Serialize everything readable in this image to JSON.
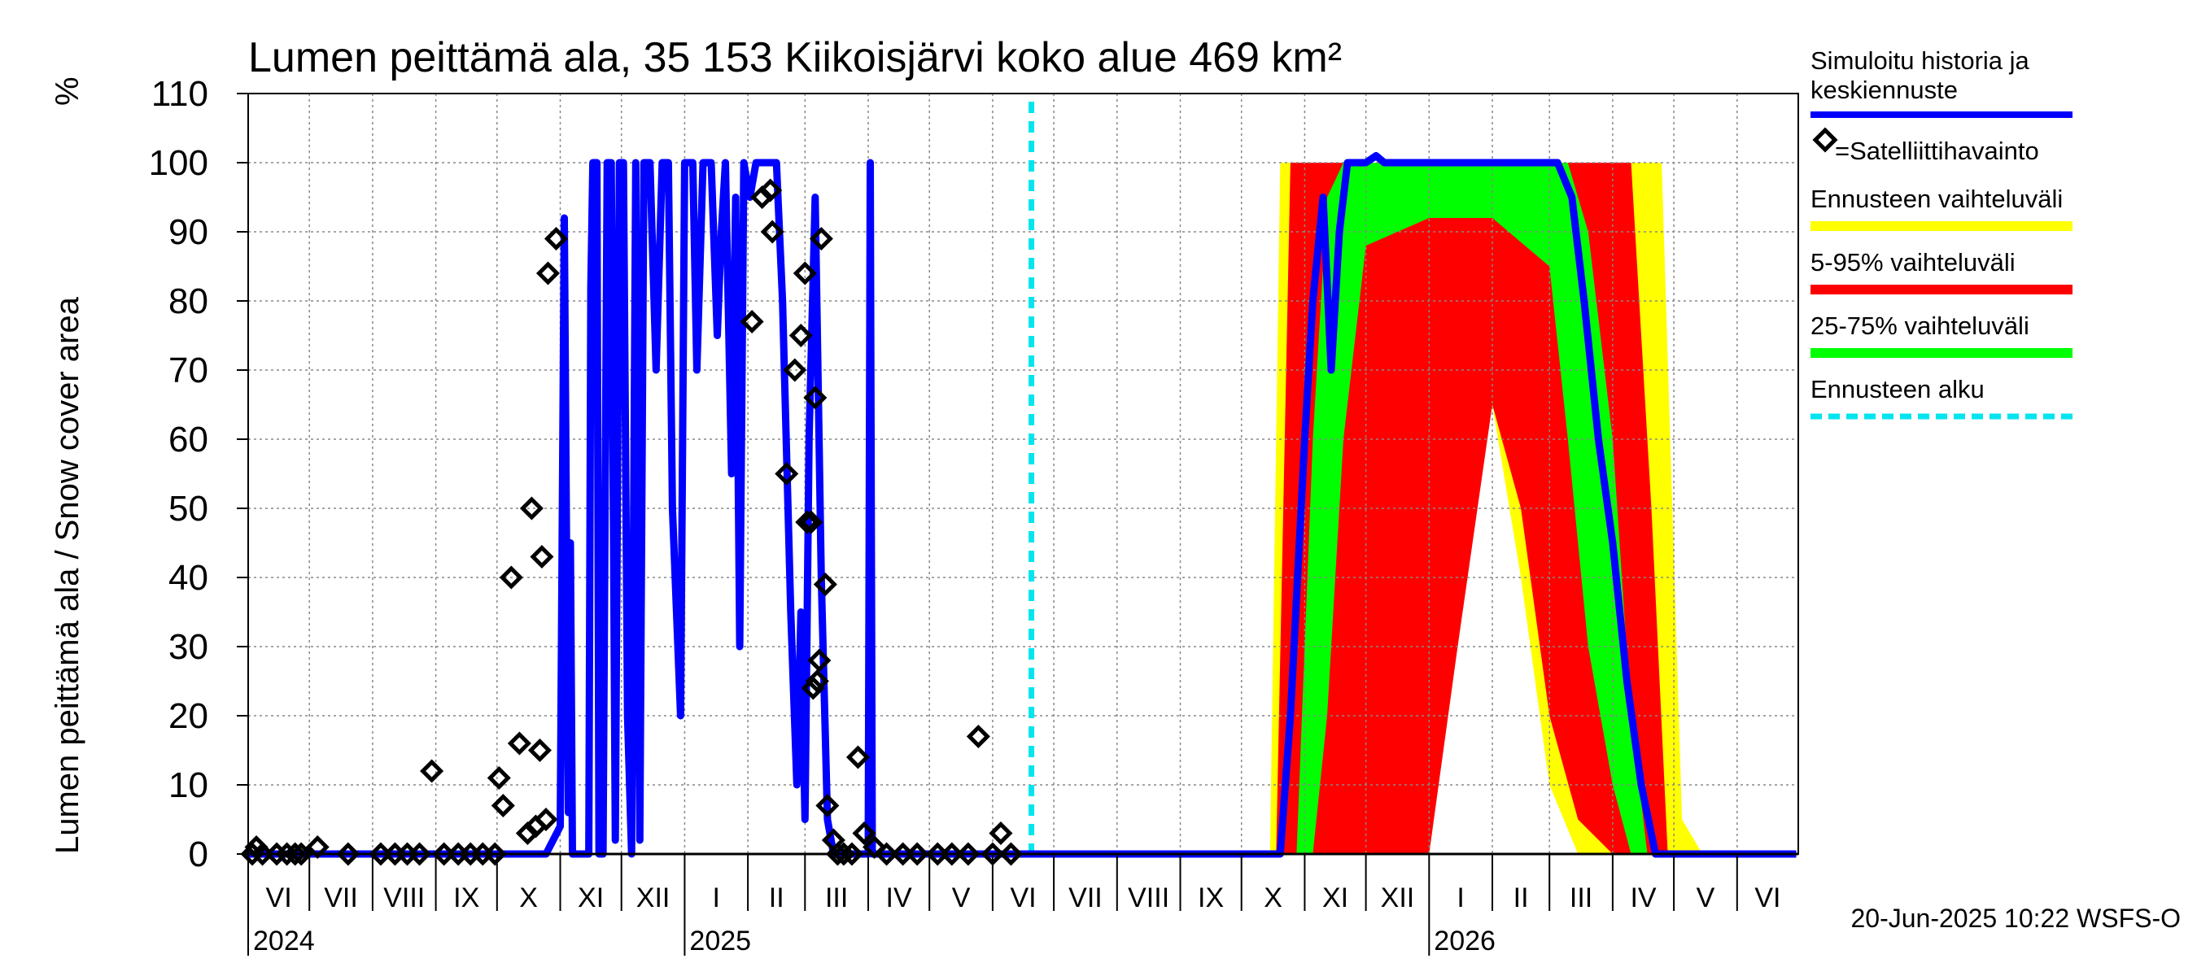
{
  "chart_data": {
    "type": "line",
    "title": "Lumen peittämä ala, 35 153 Kiikoisjärvi koko alue 469 km²",
    "ylabel": "Lumen peittämä ala / Snow cover area",
    "yunit": "%",
    "ylim": [
      0,
      110
    ],
    "yticks": [
      0,
      10,
      20,
      30,
      40,
      50,
      60,
      70,
      80,
      90,
      100,
      110
    ],
    "xlim": [
      "2024-06-01",
      "2026-06-30"
    ],
    "grid": true,
    "legend_position": "right",
    "month_labels": [
      "VI",
      "VII",
      "VIII",
      "IX",
      "X",
      "XI",
      "XII",
      "I",
      "II",
      "III",
      "IV",
      "V",
      "VI",
      "VII",
      "VIII",
      "IX",
      "X",
      "XI",
      "XII",
      "I",
      "II",
      "III",
      "IV",
      "V",
      "VI"
    ],
    "year_labels": [
      "2024",
      "2025",
      "2026"
    ],
    "forecast_start": "2025-06-20",
    "colors": {
      "history": "#0000ff",
      "observation": "#000000",
      "range_full": "#ffff00",
      "range_5_95": "#ff0000",
      "range_25_75": "#00ff00",
      "forecast_start": "#00e5ee",
      "grid": "#888888"
    },
    "legend": {
      "history": "Simuloitu historia ja keskiennuste",
      "observation": "=Satelliittihavainto",
      "range_full": "Ennusteen vaihteluväli",
      "range_5_95": "5-95% vaihteluväli",
      "range_25_75": "25-75% vaihteluväli",
      "forecast_start": "Ennusteen alku"
    },
    "history": [
      [
        "2024-06-01",
        0
      ],
      [
        "2024-10-25",
        0
      ],
      [
        "2024-11-01",
        4
      ],
      [
        "2024-11-03",
        92
      ],
      [
        "2024-11-05",
        6
      ],
      [
        "2024-11-06",
        45
      ],
      [
        "2024-11-07",
        0
      ],
      [
        "2024-11-15",
        0
      ],
      [
        "2024-11-16",
        82
      ],
      [
        "2024-11-17",
        100
      ],
      [
        "2024-11-19",
        100
      ],
      [
        "2024-11-20",
        0
      ],
      [
        "2024-11-22",
        0
      ],
      [
        "2024-11-24",
        100
      ],
      [
        "2024-11-26",
        100
      ],
      [
        "2024-11-28",
        2
      ],
      [
        "2024-11-30",
        100
      ],
      [
        "2024-12-02",
        100
      ],
      [
        "2024-12-04",
        20
      ],
      [
        "2024-12-06",
        0
      ],
      [
        "2024-12-08",
        100
      ],
      [
        "2024-12-10",
        2
      ],
      [
        "2024-12-12",
        100
      ],
      [
        "2024-12-15",
        100
      ],
      [
        "2024-12-18",
        70
      ],
      [
        "2024-12-21",
        100
      ],
      [
        "2024-12-24",
        100
      ],
      [
        "2024-12-26",
        50
      ],
      [
        "2024-12-28",
        35
      ],
      [
        "2024-12-30",
        20
      ],
      [
        "2025-01-01",
        100
      ],
      [
        "2025-01-05",
        100
      ],
      [
        "2025-01-07",
        70
      ],
      [
        "2025-01-10",
        100
      ],
      [
        "2025-01-14",
        100
      ],
      [
        "2025-01-17",
        75
      ],
      [
        "2025-01-19",
        90
      ],
      [
        "2025-01-21",
        100
      ],
      [
        "2025-01-24",
        55
      ],
      [
        "2025-01-26",
        95
      ],
      [
        "2025-01-28",
        30
      ],
      [
        "2025-01-30",
        100
      ],
      [
        "2025-02-02",
        95
      ],
      [
        "2025-02-05",
        100
      ],
      [
        "2025-02-12",
        100
      ],
      [
        "2025-02-15",
        100
      ],
      [
        "2025-02-18",
        80
      ],
      [
        "2025-02-22",
        35
      ],
      [
        "2025-02-25",
        10
      ],
      [
        "2025-02-27",
        35
      ],
      [
        "2025-03-01",
        5
      ],
      [
        "2025-03-03",
        60
      ],
      [
        "2025-03-06",
        95
      ],
      [
        "2025-03-09",
        40
      ],
      [
        "2025-03-12",
        5
      ],
      [
        "2025-03-15",
        0
      ],
      [
        "2025-04-01",
        0
      ],
      [
        "2025-04-02",
        100
      ],
      [
        "2025-04-03",
        0
      ],
      [
        "2025-06-20",
        0
      ],
      [
        "2025-10-20",
        0
      ],
      [
        "2025-10-25",
        20
      ],
      [
        "2025-11-01",
        60
      ],
      [
        "2025-11-05",
        80
      ],
      [
        "2025-11-10",
        95
      ],
      [
        "2025-11-14",
        70
      ],
      [
        "2025-11-18",
        90
      ],
      [
        "2025-11-22",
        100
      ],
      [
        "2025-12-01",
        100
      ],
      [
        "2025-12-06",
        101
      ],
      [
        "2025-12-10",
        100
      ],
      [
        "2026-03-05",
        100
      ],
      [
        "2026-03-12",
        95
      ],
      [
        "2026-03-18",
        80
      ],
      [
        "2026-03-25",
        60
      ],
      [
        "2026-04-01",
        45
      ],
      [
        "2026-04-08",
        25
      ],
      [
        "2026-04-15",
        10
      ],
      [
        "2026-04-22",
        0
      ],
      [
        "2026-06-30",
        0
      ]
    ],
    "observations": [
      [
        "2024-06-03",
        0
      ],
      [
        "2024-06-05",
        1
      ],
      [
        "2024-06-08",
        0
      ],
      [
        "2024-06-15",
        0
      ],
      [
        "2024-06-20",
        0
      ],
      [
        "2024-06-24",
        0
      ],
      [
        "2024-06-27",
        0
      ],
      [
        "2024-07-05",
        1
      ],
      [
        "2024-07-20",
        0
      ],
      [
        "2024-08-05",
        0
      ],
      [
        "2024-08-12",
        0
      ],
      [
        "2024-08-18",
        0
      ],
      [
        "2024-08-24",
        0
      ],
      [
        "2024-08-30",
        12
      ],
      [
        "2024-09-05",
        0
      ],
      [
        "2024-09-12",
        0
      ],
      [
        "2024-09-18",
        0
      ],
      [
        "2024-09-24",
        0
      ],
      [
        "2024-09-30",
        0
      ],
      [
        "2024-10-02",
        11
      ],
      [
        "2024-10-04",
        7
      ],
      [
        "2024-10-08",
        40
      ],
      [
        "2024-10-12",
        16
      ],
      [
        "2024-10-16",
        3
      ],
      [
        "2024-10-18",
        50
      ],
      [
        "2024-10-20",
        4
      ],
      [
        "2024-10-22",
        15
      ],
      [
        "2024-10-23",
        43
      ],
      [
        "2024-10-25",
        5
      ],
      [
        "2024-10-26",
        84
      ],
      [
        "2024-10-30",
        89
      ],
      [
        "2025-02-03",
        77
      ],
      [
        "2025-02-08",
        95
      ],
      [
        "2025-02-12",
        96
      ],
      [
        "2025-02-13",
        90
      ],
      [
        "2025-02-20",
        55
      ],
      [
        "2025-02-24",
        70
      ],
      [
        "2025-02-27",
        75
      ],
      [
        "2025-03-01",
        84
      ],
      [
        "2025-03-02",
        48
      ],
      [
        "2025-03-04",
        48
      ],
      [
        "2025-03-05",
        24
      ],
      [
        "2025-03-06",
        66
      ],
      [
        "2025-03-07",
        25
      ],
      [
        "2025-03-08",
        28
      ],
      [
        "2025-03-09",
        89
      ],
      [
        "2025-03-11",
        39
      ],
      [
        "2025-03-12",
        7
      ],
      [
        "2025-03-15",
        2
      ],
      [
        "2025-03-17",
        0
      ],
      [
        "2025-03-20",
        0
      ],
      [
        "2025-03-24",
        0
      ],
      [
        "2025-03-27",
        14
      ],
      [
        "2025-03-30",
        3
      ],
      [
        "2025-04-04",
        1
      ],
      [
        "2025-04-10",
        0
      ],
      [
        "2025-04-18",
        0
      ],
      [
        "2025-04-25",
        0
      ],
      [
        "2025-05-05",
        0
      ],
      [
        "2025-05-12",
        0
      ],
      [
        "2025-05-20",
        0
      ],
      [
        "2025-05-25",
        17
      ],
      [
        "2025-06-01",
        0
      ],
      [
        "2025-06-05",
        3
      ],
      [
        "2025-06-10",
        0
      ]
    ],
    "range_full": {
      "x": [
        "2025-10-15",
        "2025-10-20",
        "2025-10-25",
        "2025-11-01",
        "2025-11-15",
        "2025-12-01",
        "2026-01-01",
        "2026-01-15",
        "2026-02-01",
        "2026-02-15",
        "2026-03-01",
        "2026-03-15",
        "2026-04-01",
        "2026-04-15",
        "2026-04-25",
        "2026-05-05",
        "2026-05-15"
      ],
      "lo": [
        0,
        0,
        0,
        0,
        0,
        0,
        0,
        35,
        65,
        40,
        10,
        0,
        0,
        0,
        0,
        0,
        0
      ],
      "hi": [
        0,
        100,
        100,
        100,
        100,
        100,
        100,
        100,
        100,
        100,
        100,
        100,
        100,
        100,
        100,
        5,
        0
      ]
    },
    "range_5_95": {
      "x": [
        "2025-10-18",
        "2025-10-25",
        "2025-11-01",
        "2025-11-15",
        "2025-12-01",
        "2026-01-01",
        "2026-01-15",
        "2026-02-01",
        "2026-02-15",
        "2026-03-01",
        "2026-03-15",
        "2026-04-01",
        "2026-04-10",
        "2026-04-20",
        "2026-04-28"
      ],
      "lo": [
        0,
        0,
        0,
        0,
        0,
        0,
        30,
        65,
        50,
        20,
        5,
        0,
        0,
        0,
        0
      ],
      "hi": [
        0,
        100,
        100,
        100,
        100,
        100,
        100,
        100,
        100,
        100,
        100,
        100,
        100,
        50,
        0
      ]
    },
    "range_25_75": {
      "x": [
        "2025-10-28",
        "2025-11-05",
        "2025-11-12",
        "2025-11-20",
        "2025-12-01",
        "2026-01-01",
        "2026-02-01",
        "2026-03-01",
        "2026-03-10",
        "2026-03-20",
        "2026-04-01",
        "2026-04-10",
        "2026-04-18"
      ],
      "lo": [
        0,
        0,
        20,
        60,
        88,
        92,
        92,
        85,
        60,
        30,
        10,
        0,
        0
      ],
      "hi": [
        0,
        60,
        95,
        100,
        100,
        100,
        100,
        100,
        100,
        90,
        60,
        20,
        0
      ]
    }
  },
  "footer": "20-Jun-2025 10:22 WSFS-O"
}
